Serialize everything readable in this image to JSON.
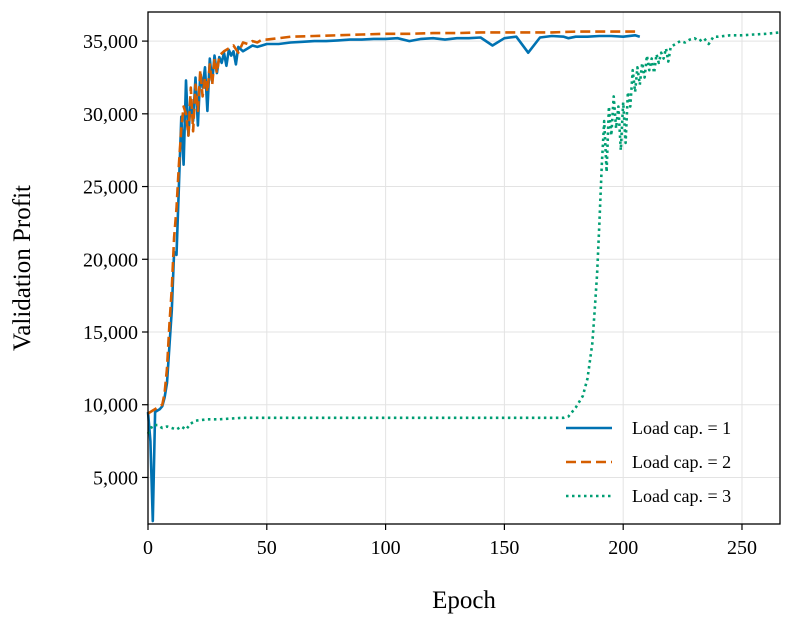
{
  "chart_data": {
    "type": "line",
    "title": "",
    "xlabel": "Epoch",
    "ylabel": "Validation Profit",
    "xlim": [
      0,
      266
    ],
    "ylim": [
      1800,
      37000
    ],
    "xticks": [
      0,
      50,
      100,
      150,
      200,
      250
    ],
    "xtick_labels": [
      "0",
      "50",
      "100",
      "150",
      "200",
      "250"
    ],
    "yticks": [
      5000,
      10000,
      15000,
      20000,
      25000,
      30000,
      35000
    ],
    "ytick_labels": [
      "5,000",
      "10,000",
      "15,000",
      "20,000",
      "25,000",
      "30,000",
      "35,000"
    ],
    "grid": true,
    "legend_position": "lower-right",
    "series": [
      {
        "name": "Load cap. = 1",
        "color": "#0072B2",
        "dash": "solid",
        "x": [
          0,
          1,
          2,
          3,
          4,
          5,
          6,
          7,
          8,
          9,
          10,
          11,
          12,
          13,
          14,
          15,
          16,
          17,
          18,
          19,
          20,
          21,
          22,
          23,
          24,
          25,
          26,
          27,
          28,
          29,
          30,
          31,
          32,
          33,
          34,
          35,
          36,
          37,
          38,
          40,
          42,
          44,
          46,
          48,
          50,
          55,
          60,
          65,
          70,
          75,
          80,
          85,
          90,
          95,
          100,
          105,
          110,
          115,
          120,
          125,
          130,
          135,
          140,
          145,
          150,
          155,
          160,
          165,
          170,
          175,
          177,
          180,
          185,
          190,
          195,
          200,
          205,
          207
        ],
        "values": [
          9500,
          7500,
          2000,
          9500,
          9600,
          9700,
          9900,
          10500,
          11500,
          14000,
          16500,
          20500,
          20300,
          25000,
          29800,
          26500,
          32300,
          28500,
          31000,
          29500,
          32500,
          29200,
          32800,
          31800,
          33200,
          30200,
          33800,
          32200,
          34000,
          32800,
          33900,
          33500,
          34200,
          33300,
          34400,
          34000,
          34300,
          33400,
          34600,
          34300,
          34500,
          34700,
          34600,
          34700,
          34800,
          34800,
          34900,
          34950,
          35000,
          35000,
          35050,
          35100,
          35100,
          35150,
          35150,
          35200,
          35000,
          35150,
          35200,
          35100,
          35200,
          35200,
          35250,
          34700,
          35200,
          35300,
          34200,
          35250,
          35350,
          35300,
          35200,
          35300,
          35300,
          35350,
          35350,
          35300,
          35400,
          35300
        ]
      },
      {
        "name": "Load cap. = 2",
        "color": "#D55E00",
        "dash": "dashed",
        "x": [
          0,
          1,
          2,
          3,
          4,
          5,
          6,
          7,
          8,
          9,
          10,
          11,
          12,
          13,
          14,
          15,
          16,
          17,
          18,
          19,
          20,
          21,
          22,
          23,
          24,
          25,
          26,
          27,
          28,
          29,
          30,
          32,
          34,
          36,
          38,
          40,
          42,
          44,
          46,
          48,
          50,
          55,
          60,
          70,
          80,
          90,
          100,
          110,
          120,
          130,
          140,
          150,
          160,
          170,
          180,
          190,
          200,
          205
        ],
        "values": [
          9400,
          9500,
          9600,
          9700,
          9800,
          9900,
          10000,
          10800,
          12500,
          15500,
          18000,
          21500,
          23500,
          26500,
          29000,
          30500,
          30000,
          28500,
          31800,
          28800,
          32000,
          30200,
          33000,
          31200,
          32500,
          31500,
          33400,
          32000,
          33800,
          32800,
          34000,
          34300,
          34500,
          34700,
          34200,
          34900,
          34800,
          35000,
          34900,
          35100,
          35100,
          35200,
          35300,
          35350,
          35400,
          35450,
          35500,
          35500,
          35550,
          35550,
          35600,
          35600,
          35600,
          35600,
          35650,
          35650,
          35650,
          35650
        ]
      },
      {
        "name": "Load cap. = 3",
        "color": "#009E73",
        "dash": "dotted",
        "x": [
          0,
          2,
          4,
          6,
          8,
          10,
          12,
          14,
          16,
          18,
          20,
          25,
          30,
          40,
          50,
          60,
          80,
          100,
          120,
          140,
          160,
          170,
          175,
          177,
          180,
          183,
          185,
          187,
          188,
          189,
          190,
          191,
          192,
          193,
          194,
          195,
          196,
          197,
          198,
          199,
          200,
          201,
          202,
          203,
          204,
          205,
          206,
          207,
          208,
          209,
          210,
          211,
          212,
          213,
          214,
          215,
          216,
          217,
          218,
          219,
          220,
          222,
          224,
          226,
          228,
          230,
          232,
          234,
          236,
          238,
          240,
          245,
          250,
          255,
          260,
          266
        ],
        "values": [
          8000,
          8600,
          8600,
          8400,
          8500,
          8400,
          8300,
          8500,
          8300,
          8700,
          8900,
          9000,
          9000,
          9100,
          9100,
          9100,
          9100,
          9100,
          9100,
          9100,
          9100,
          9100,
          9100,
          9200,
          9800,
          10600,
          11800,
          14200,
          16500,
          19000,
          22500,
          26500,
          29500,
          26000,
          30500,
          28500,
          31200,
          29000,
          30500,
          27500,
          30800,
          28000,
          31500,
          30500,
          33000,
          31500,
          33200,
          32000,
          33500,
          32500,
          34000,
          33000,
          33800,
          32800,
          34100,
          33500,
          34200,
          33800,
          34500,
          33600,
          34600,
          34800,
          35000,
          34900,
          35100,
          35200,
          35000,
          35200,
          34800,
          35300,
          35300,
          35400,
          35400,
          35450,
          35500,
          35600
        ]
      }
    ]
  }
}
